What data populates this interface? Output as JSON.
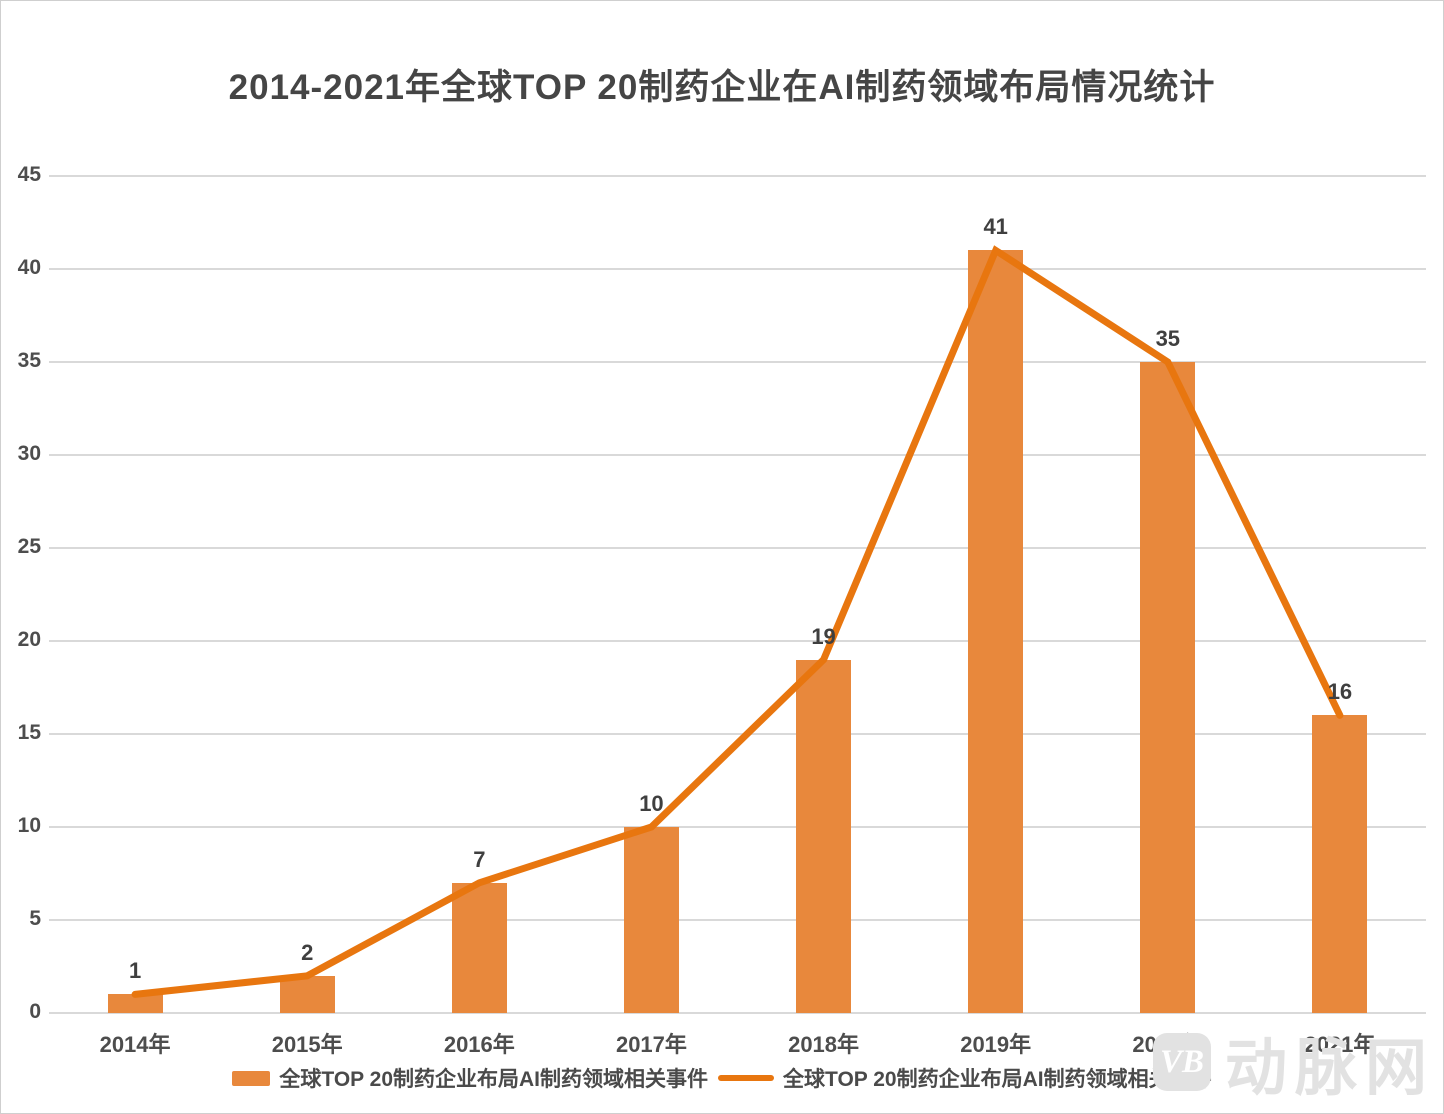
{
  "title": "2014-2021年全球TOP 20制药企业在AI制药领域布局情况统计",
  "colors": {
    "bar": "#e8883c",
    "line": "#e8760f",
    "grid": "#d9d9d9",
    "text": "#4d4d4d",
    "title_text": "#454545",
    "watermark": "#e2e2e2"
  },
  "legend": {
    "items": [
      {
        "type": "bar",
        "label": "全球TOP 20制药企业布局AI制药领域相关事件"
      },
      {
        "type": "line",
        "label": "全球TOP 20制药企业布局AI制药领域相关事件"
      }
    ]
  },
  "watermark": {
    "badge": "VB",
    "text": "动脉网"
  },
  "chart_data": {
    "type": "bar+line",
    "title": "2014-2021年全球TOP 20制药企业在AI制药领域布局情况统计",
    "categories": [
      "2014年",
      "2015年",
      "2016年",
      "2017年",
      "2018年",
      "2019年",
      "2020年",
      "2021年"
    ],
    "series": [
      {
        "name": "全球TOP 20制药企业布局AI制药领域相关事件",
        "type": "bar",
        "values": [
          1,
          2,
          7,
          10,
          19,
          41,
          35,
          16
        ]
      },
      {
        "name": "全球TOP 20制药企业布局AI制药领域相关事件",
        "type": "line",
        "values": [
          1,
          2,
          7,
          10,
          19,
          41,
          35,
          16
        ]
      }
    ],
    "data_labels": [
      1,
      2,
      7,
      10,
      19,
      41,
      35,
      16
    ],
    "xlabel": "",
    "ylabel": "",
    "ylim": [
      0,
      45
    ],
    "ytick_step": 5,
    "yticks": [
      0,
      5,
      10,
      15,
      20,
      25,
      30,
      35,
      40,
      45
    ],
    "grid": true,
    "legend_position": "bottom"
  }
}
